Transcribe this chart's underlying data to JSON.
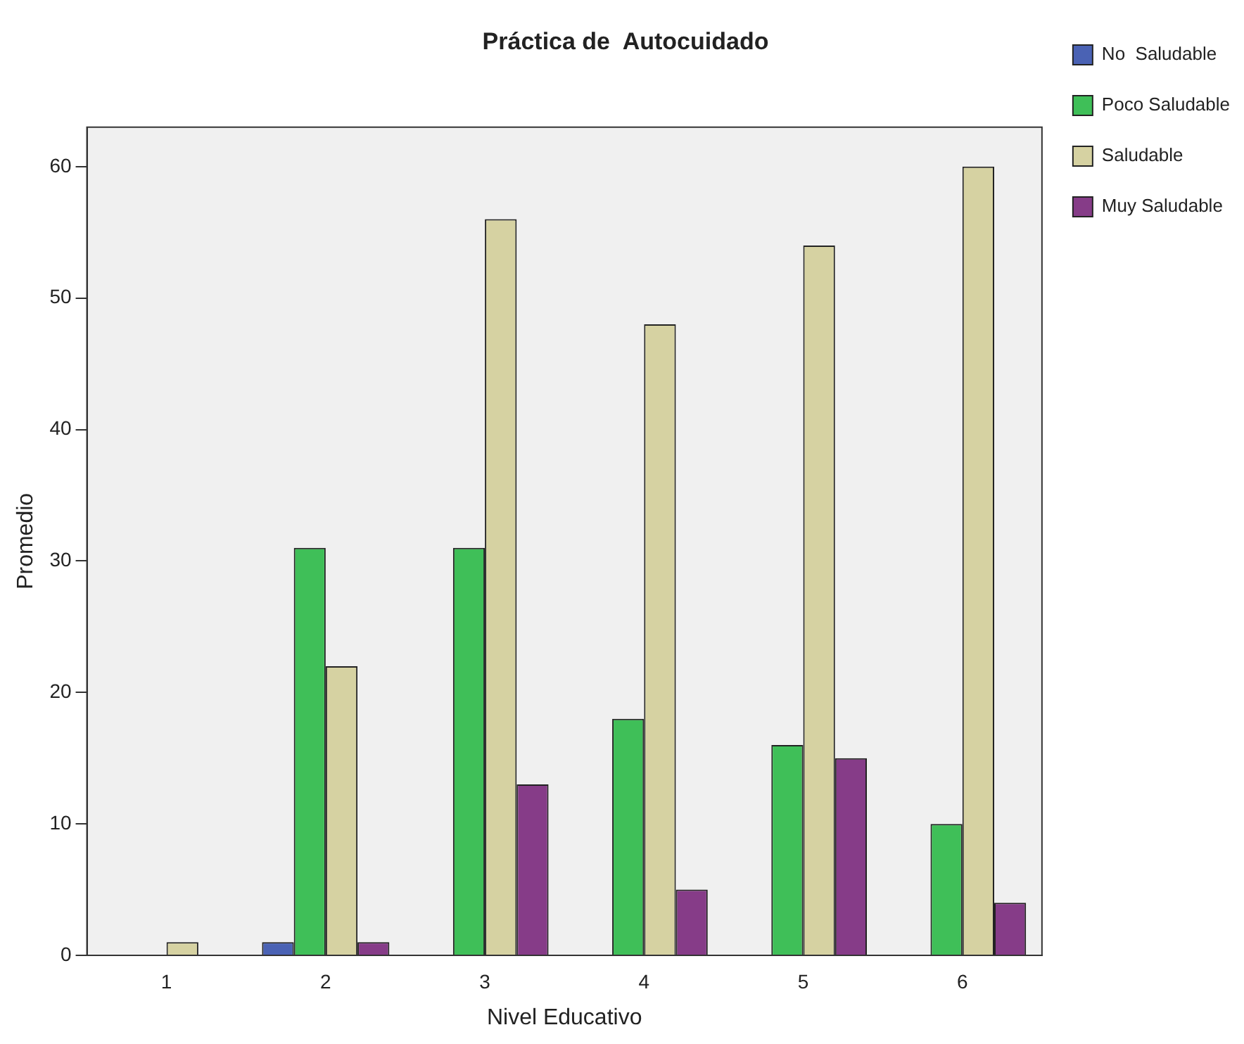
{
  "chart_data": {
    "type": "bar",
    "title": "Práctica de  Autocuidado",
    "xlabel": "Nivel Educativo",
    "ylabel": "Promedio",
    "categories": [
      "1",
      "2",
      "3",
      "4",
      "5",
      "6"
    ],
    "series": [
      {
        "name": "No  Saludable",
        "color": "#4a62b4",
        "values": [
          null,
          1,
          null,
          null,
          null,
          null
        ]
      },
      {
        "name": "Poco Saludable",
        "color": "#3fbf58",
        "values": [
          null,
          31,
          31,
          18,
          16,
          10
        ]
      },
      {
        "name": "Saludable",
        "color": "#d6d2a2",
        "values": [
          1,
          22,
          56,
          48,
          54,
          60
        ]
      },
      {
        "name": "Muy Saludable",
        "color": "#863c88",
        "values": [
          null,
          1,
          13,
          5,
          15,
          4
        ]
      }
    ],
    "ylim": [
      0,
      63
    ],
    "yticks": [
      0,
      10,
      20,
      30,
      40,
      50,
      60
    ],
    "grid": false,
    "legend": "top right"
  }
}
